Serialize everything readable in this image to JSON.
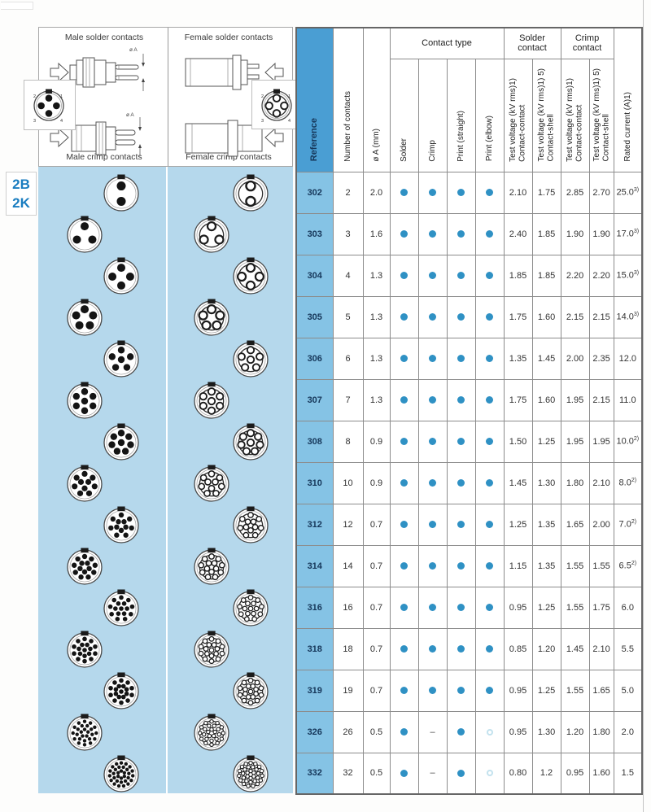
{
  "page": {
    "series_codes": [
      "2B",
      "2K"
    ]
  },
  "diagrams": {
    "top_left_label": "Male solder contacts",
    "top_right_label": "Female solder contacts",
    "bottom_left_label": "Male crimp contacts",
    "bottom_right_label": "Female crimp contacts",
    "dim_label": "ø A",
    "pin_numbers": [
      "1",
      "2",
      "3",
      "4"
    ]
  },
  "table": {
    "headers": {
      "reference": "Reference",
      "contacts": "Number of contacts",
      "diameter": "ø A (mm)",
      "contact_type_group": "Contact type",
      "contact_types": [
        "Solder",
        "Crimp",
        "Print (straight)",
        "Print (elbow)"
      ],
      "solder_group": "Solder contact",
      "crimp_group": "Crimp contact",
      "test_cc": "Test voltage (kV rms)1)",
      "test_cs": "Test voltage (kV rms)1) 5)",
      "cc_sub": "Contact-contact",
      "cs_sub": "Contact-shell",
      "rated": "Rated current (A)1)"
    },
    "rows": [
      {
        "ref": "302",
        "n": 2,
        "dia": "2.0",
        "marks": [
          "dot",
          "dot",
          "dot",
          "dot"
        ],
        "v": [
          "2.10",
          "1.75",
          "2.85",
          "2.70"
        ],
        "rated": "25.0",
        "rated_sup": "3)"
      },
      {
        "ref": "303",
        "n": 3,
        "dia": "1.6",
        "marks": [
          "dot",
          "dot",
          "dot",
          "dot"
        ],
        "v": [
          "2.40",
          "1.85",
          "1.90",
          "1.90"
        ],
        "rated": "17.0",
        "rated_sup": "3)"
      },
      {
        "ref": "304",
        "n": 4,
        "dia": "1.3",
        "marks": [
          "dot",
          "dot",
          "dot",
          "dot"
        ],
        "v": [
          "1.85",
          "1.85",
          "2.20",
          "2.20"
        ],
        "rated": "15.0",
        "rated_sup": "3)"
      },
      {
        "ref": "305",
        "n": 5,
        "dia": "1.3",
        "marks": [
          "dot",
          "dot",
          "dot",
          "dot"
        ],
        "v": [
          "1.75",
          "1.60",
          "2.15",
          "2.15"
        ],
        "rated": "14.0",
        "rated_sup": "3)"
      },
      {
        "ref": "306",
        "n": 6,
        "dia": "1.3",
        "marks": [
          "dot",
          "dot",
          "dot",
          "dot"
        ],
        "v": [
          "1.35",
          "1.45",
          "2.00",
          "2.35"
        ],
        "rated": "12.0",
        "rated_sup": ""
      },
      {
        "ref": "307",
        "n": 7,
        "dia": "1.3",
        "marks": [
          "dot",
          "dot",
          "dot",
          "dot"
        ],
        "v": [
          "1.75",
          "1.60",
          "1.95",
          "2.15"
        ],
        "rated": "11.0",
        "rated_sup": ""
      },
      {
        "ref": "308",
        "n": 8,
        "dia": "0.9",
        "marks": [
          "dot",
          "dot",
          "dot",
          "dot"
        ],
        "v": [
          "1.50",
          "1.25",
          "1.95",
          "1.95"
        ],
        "rated": "10.0",
        "rated_sup": "2)"
      },
      {
        "ref": "310",
        "n": 10,
        "dia": "0.9",
        "marks": [
          "dot",
          "dot",
          "dot",
          "dot"
        ],
        "v": [
          "1.45",
          "1.30",
          "1.80",
          "2.10"
        ],
        "rated": "8.0",
        "rated_sup": "2)"
      },
      {
        "ref": "312",
        "n": 12,
        "dia": "0.7",
        "marks": [
          "dot",
          "dot",
          "dot",
          "dot"
        ],
        "v": [
          "1.25",
          "1.35",
          "1.65",
          "2.00"
        ],
        "rated": "7.0",
        "rated_sup": "2)"
      },
      {
        "ref": "314",
        "n": 14,
        "dia": "0.7",
        "marks": [
          "dot",
          "dot",
          "dot",
          "dot"
        ],
        "v": [
          "1.15",
          "1.35",
          "1.55",
          "1.55"
        ],
        "rated": "6.5",
        "rated_sup": "2)"
      },
      {
        "ref": "316",
        "n": 16,
        "dia": "0.7",
        "marks": [
          "dot",
          "dot",
          "dot",
          "dot"
        ],
        "v": [
          "0.95",
          "1.25",
          "1.55",
          "1.75"
        ],
        "rated": "6.0",
        "rated_sup": ""
      },
      {
        "ref": "318",
        "n": 18,
        "dia": "0.7",
        "marks": [
          "dot",
          "dot",
          "dot",
          "dot"
        ],
        "v": [
          "0.85",
          "1.20",
          "1.45",
          "2.10"
        ],
        "rated": "5.5",
        "rated_sup": ""
      },
      {
        "ref": "319",
        "n": 19,
        "dia": "0.7",
        "marks": [
          "dot",
          "dot",
          "dot",
          "dot"
        ],
        "v": [
          "0.95",
          "1.25",
          "1.55",
          "1.65"
        ],
        "rated": "5.0",
        "rated_sup": ""
      },
      {
        "ref": "326",
        "n": 26,
        "dia": "0.5",
        "marks": [
          "dot",
          "dash",
          "dot",
          "open"
        ],
        "v": [
          "0.95",
          "1.30",
          "1.20",
          "1.80"
        ],
        "rated": "2.0",
        "rated_sup": ""
      },
      {
        "ref": "332",
        "n": 32,
        "dia": "0.5",
        "marks": [
          "dot",
          "dash",
          "dot",
          "open"
        ],
        "v": [
          "0.80",
          "1.2",
          "0.95",
          "1.60"
        ],
        "rated": "1.5",
        "rated_sup": ""
      }
    ]
  },
  "colors": {
    "panel_blue": "#b5d8ec",
    "ref_header_blue": "#4a9ed3",
    "ref_cell_blue": "#85c3e5",
    "dot_blue": "#2f91c4",
    "open_dot_stroke": "#c3e2ee",
    "code_blue": "#1a7dc0"
  }
}
